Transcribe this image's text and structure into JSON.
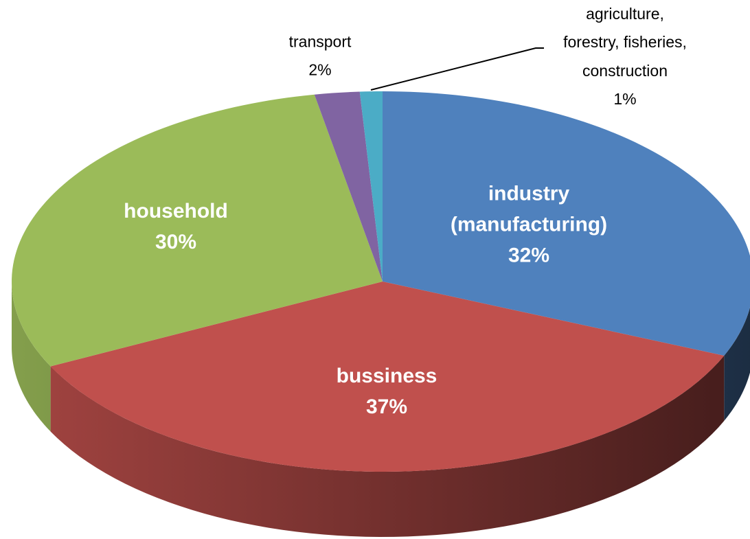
{
  "chart_data": {
    "type": "pie",
    "three_d": true,
    "categories": [
      "industry\n(manufacturing)",
      "bussiness",
      "household",
      "transport",
      "agriculture,\nforestry, fisheries,\nconstruction"
    ],
    "values": [
      32,
      37,
      30,
      2,
      1
    ],
    "value_labels": [
      "32%",
      "37%",
      "30%",
      "2%",
      "1%"
    ],
    "colors": [
      "#4f81bd",
      "#c0504d",
      "#9bbb59",
      "#8064a2",
      "#4bacc6"
    ]
  }
}
